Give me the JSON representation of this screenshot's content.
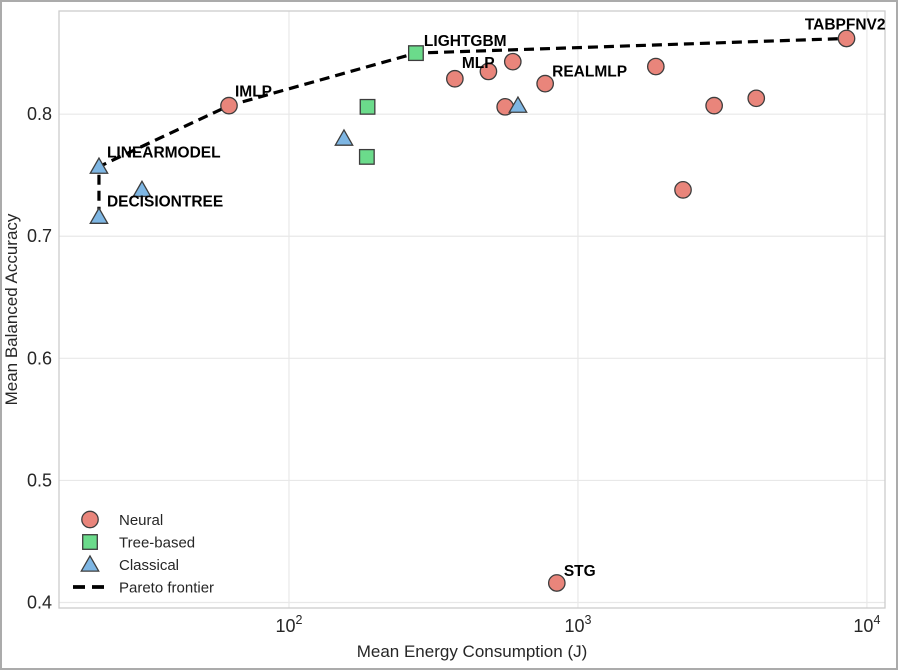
{
  "figure": {
    "background": "#ffffff",
    "border_color": "#ababab"
  },
  "chart_data": {
    "type": "scatter",
    "title": "",
    "xlabel": "Mean Energy Consumption (J)",
    "ylabel": "Mean Balanced Accuracy",
    "xscale": "log",
    "xlim": [
      16,
      11550
    ],
    "ylim": [
      0.3955,
      0.8845
    ],
    "xticks": [
      {
        "value": 100,
        "base": "10",
        "exp": "2"
      },
      {
        "value": 1000,
        "base": "10",
        "exp": "3"
      },
      {
        "value": 10000,
        "base": "10",
        "exp": "4"
      }
    ],
    "yticks": [
      {
        "value": 0.4,
        "label": "0.4"
      },
      {
        "value": 0.5,
        "label": "0.5"
      },
      {
        "value": 0.6,
        "label": "0.6"
      },
      {
        "value": 0.7,
        "label": "0.7"
      },
      {
        "value": 0.8,
        "label": "0.8"
      }
    ],
    "grid": true,
    "grid_color": "#e8e8e8",
    "spine_color": "#cccccc",
    "text_color": "#262626",
    "annotation_color": "#000000",
    "marker_edge_color": "#3d3d3d",
    "series": [
      {
        "name": "Neural",
        "marker": "circle",
        "color": "#e9857b",
        "points": [
          {
            "x": 62,
            "y": 0.807,
            "label": "IMLP",
            "dx": 6,
            "dy": -9,
            "anchor": "start"
          },
          {
            "x": 375,
            "y": 0.829,
            "label": "MLP",
            "dx": 7,
            "dy": -11,
            "anchor": "start"
          },
          {
            "x": 490,
            "y": 0.835
          },
          {
            "x": 595,
            "y": 0.843
          },
          {
            "x": 770,
            "y": 0.825,
            "label": "REALMLP",
            "dx": 7,
            "dy": -7,
            "anchor": "start"
          },
          {
            "x": 560,
            "y": 0.806
          },
          {
            "x": 1860,
            "y": 0.839
          },
          {
            "x": 2960,
            "y": 0.807
          },
          {
            "x": 4140,
            "y": 0.813
          },
          {
            "x": 2310,
            "y": 0.738
          },
          {
            "x": 8500,
            "y": 0.862,
            "label": "TABPFNV2",
            "dx": 39,
            "dy": -9,
            "anchor": "end"
          },
          {
            "x": 845,
            "y": 0.416,
            "label": "STG",
            "dx": 7,
            "dy": -7,
            "anchor": "start"
          }
        ]
      },
      {
        "name": "Tree-based",
        "marker": "square",
        "color": "#6bdb8b",
        "points": [
          {
            "x": 275,
            "y": 0.85,
            "label": "LIGHTGBM",
            "dx": 8,
            "dy": -7,
            "anchor": "start"
          },
          {
            "x": 187,
            "y": 0.806
          },
          {
            "x": 186,
            "y": 0.765
          }
        ]
      },
      {
        "name": "Classical",
        "marker": "triangle",
        "color": "#7eb6e3",
        "points": [
          {
            "x": 22,
            "y": 0.757,
            "label": "LINEARMODEL",
            "dx": 8,
            "dy": -9,
            "anchor": "start"
          },
          {
            "x": 22,
            "y": 0.716,
            "label": "DECISIONTREE",
            "dx": 8,
            "dy": -10,
            "anchor": "start"
          },
          {
            "x": 31,
            "y": 0.738
          },
          {
            "x": 155,
            "y": 0.78
          },
          {
            "x": 620,
            "y": 0.807
          }
        ]
      }
    ],
    "pareto_frontier": {
      "name": "Pareto frontier",
      "style": "dashed",
      "color": "#000000",
      "points": [
        {
          "x": 22,
          "y": 0.716
        },
        {
          "x": 22,
          "y": 0.757
        },
        {
          "x": 62,
          "y": 0.807
        },
        {
          "x": 275,
          "y": 0.85
        },
        {
          "x": 8500,
          "y": 0.862
        }
      ]
    },
    "legend": {
      "position": "lower left",
      "items": [
        {
          "label": "Neural",
          "marker": "circle",
          "color": "#e9857b"
        },
        {
          "label": "Tree-based",
          "marker": "square",
          "color": "#6bdb8b"
        },
        {
          "label": "Classical",
          "marker": "triangle",
          "color": "#7eb6e3"
        },
        {
          "label": "Pareto frontier",
          "marker": "dashed-line",
          "color": "#000000"
        }
      ]
    }
  }
}
